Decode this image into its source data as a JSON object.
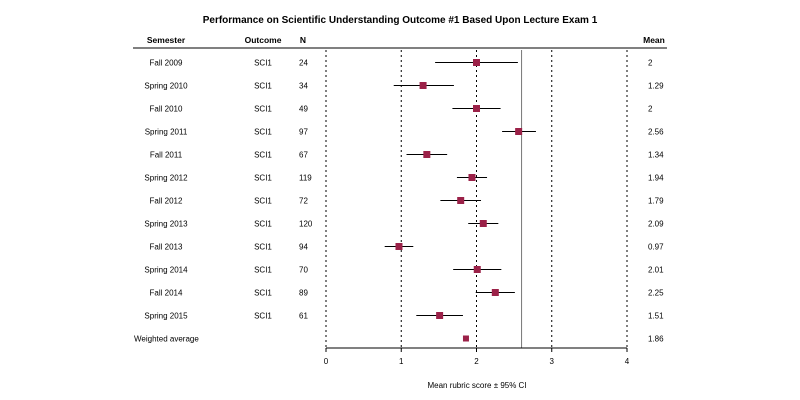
{
  "chart_data": {
    "type": "forest",
    "title": "Performance on Scientific Understanding Outcome #1 Based Upon Lecture Exam 1",
    "columns": {
      "semester": "Semester",
      "outcome": "Outcome",
      "n": "N",
      "mean": "Mean"
    },
    "xlabel": "Mean rubric score ± 95% CI",
    "xlim": [
      0,
      4
    ],
    "xticks": [
      "0",
      "1",
      "2",
      "3",
      "4"
    ],
    "dashed_reference_lines": [
      0,
      1,
      2,
      3,
      4
    ],
    "overall_reference_line": 2.6,
    "colors": {
      "marker": "#9b2148",
      "line": "#000000"
    },
    "rows": [
      {
        "semester": "Fall 2009",
        "outcome": "SCI1",
        "n": "24",
        "mean": 2,
        "mean_label": "2",
        "ci": [
          1.45,
          2.55
        ]
      },
      {
        "semester": "Spring 2010",
        "outcome": "SCI1",
        "n": "34",
        "mean": 1.29,
        "mean_label": "1.29",
        "ci": [
          0.9,
          1.7
        ]
      },
      {
        "semester": "Fall 2010",
        "outcome": "SCI1",
        "n": "49",
        "mean": 2,
        "mean_label": "2",
        "ci": [
          1.68,
          2.32
        ]
      },
      {
        "semester": "Spring 2011",
        "outcome": "SCI1",
        "n": "97",
        "mean": 2.56,
        "mean_label": "2.56",
        "ci": [
          2.34,
          2.79
        ]
      },
      {
        "semester": "Fall 2011",
        "outcome": "SCI1",
        "n": "67",
        "mean": 1.34,
        "mean_label": "1.34",
        "ci": [
          1.07,
          1.61
        ]
      },
      {
        "semester": "Spring 2012",
        "outcome": "SCI1",
        "n": "119",
        "mean": 1.94,
        "mean_label": "1.94",
        "ci": [
          1.74,
          2.14
        ]
      },
      {
        "semester": "Fall 2012",
        "outcome": "SCI1",
        "n": "72",
        "mean": 1.79,
        "mean_label": "1.79",
        "ci": [
          1.52,
          2.06
        ]
      },
      {
        "semester": "Spring 2013",
        "outcome": "SCI1",
        "n": "120",
        "mean": 2.09,
        "mean_label": "2.09",
        "ci": [
          1.89,
          2.29
        ]
      },
      {
        "semester": "Fall 2013",
        "outcome": "SCI1",
        "n": "94",
        "mean": 0.97,
        "mean_label": "0.97",
        "ci": [
          0.78,
          1.16
        ]
      },
      {
        "semester": "Spring 2014",
        "outcome": "SCI1",
        "n": "70",
        "mean": 2.01,
        "mean_label": "2.01",
        "ci": [
          1.69,
          2.33
        ]
      },
      {
        "semester": "Fall 2014",
        "outcome": "SCI1",
        "n": "89",
        "mean": 2.25,
        "mean_label": "2.25",
        "ci": [
          1.99,
          2.51
        ]
      },
      {
        "semester": "Spring 2015",
        "outcome": "SCI1",
        "n": "61",
        "mean": 1.51,
        "mean_label": "1.51",
        "ci": [
          1.2,
          1.82
        ]
      }
    ],
    "summary": {
      "semester": "Weighted average",
      "mean": 1.86,
      "mean_label": "1.86"
    }
  }
}
